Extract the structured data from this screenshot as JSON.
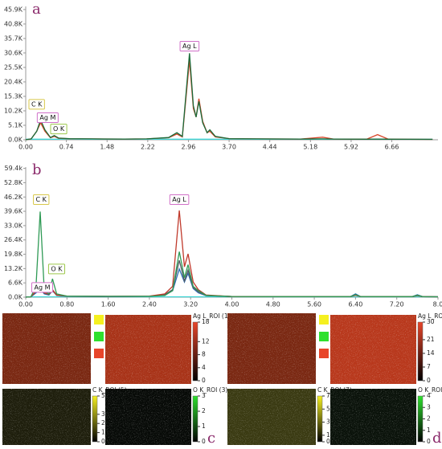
{
  "chart_data": [
    {
      "type": "line",
      "panel_label": "a",
      "xlim": [
        0,
        7.5
      ],
      "ylim": [
        0,
        47000
      ],
      "xticks": [
        {
          "value": 0,
          "label": "0.00"
        },
        0.74,
        1.48,
        2.22,
        2.96,
        {
          "value": 3.7,
          "label": "3.70"
        },
        4.44,
        5.18,
        5.92,
        6.66
      ],
      "yticks": [
        {
          "value": 0,
          "label": "0.0K"
        },
        {
          "value": 5100,
          "label": "5.1K"
        },
        {
          "value": 10200,
          "label": "10.2K"
        },
        {
          "value": 15300,
          "label": "15.3K"
        },
        {
          "value": 20400,
          "label": "20.4K"
        },
        {
          "value": 25500,
          "label": "25.5K"
        },
        {
          "value": 30600,
          "label": "30.6K"
        },
        {
          "value": 35700,
          "label": "35.7K"
        },
        {
          "value": 40800,
          "label": "40.8K"
        },
        {
          "value": 45900,
          "label": "45.9K"
        }
      ],
      "x": [
        0,
        0.1,
        0.2,
        0.27,
        0.35,
        0.45,
        0.52,
        0.6,
        0.8,
        1.2,
        1.8,
        2.2,
        2.6,
        2.75,
        2.85,
        2.98,
        3.05,
        3.1,
        3.15,
        3.22,
        3.3,
        3.35,
        3.45,
        3.7,
        4.2,
        5.0,
        5.4,
        5.6,
        6.2,
        6.4,
        6.6,
        7.4
      ],
      "series": [
        {
          "color": "#3fd6d6",
          "values": [
            200,
            200,
            200,
            200,
            200,
            200,
            200,
            200,
            200,
            200,
            200,
            200,
            200,
            200,
            200,
            200,
            200,
            200,
            200,
            200,
            200,
            200,
            200,
            200,
            200,
            200,
            200,
            200,
            200,
            200,
            200,
            200
          ]
        },
        {
          "color": "#d9472b",
          "values": [
            0,
            300,
            3000,
            6000,
            3000,
            700,
            1200,
            500,
            350,
            300,
            250,
            300,
            700,
            2000,
            1000,
            28000,
            11000,
            8000,
            14500,
            6500,
            2500,
            3000,
            1000,
            400,
            300,
            250,
            900,
            250,
            200,
            1800,
            200,
            150
          ]
        },
        {
          "color": "#1a6b3a",
          "values": [
            0,
            300,
            3000,
            7000,
            3500,
            800,
            1500,
            600,
            400,
            300,
            250,
            300,
            800,
            2500,
            1200,
            30500,
            12000,
            8000,
            13500,
            6000,
            2500,
            3500,
            1200,
            400,
            300,
            250,
            300,
            250,
            200,
            250,
            200,
            150
          ]
        }
      ],
      "annotations": [
        {
          "text": "C K",
          "x": 0.2,
          "y": 12500,
          "color": "#d8c84a"
        },
        {
          "text": "Ag M",
          "x": 0.4,
          "y": 7800,
          "color": "#d070c8"
        },
        {
          "text": "O K",
          "x": 0.6,
          "y": 3800,
          "color": "#9cc84a"
        },
        {
          "text": "Ag L",
          "x": 2.98,
          "y": 33000,
          "color": "#d070c8"
        }
      ]
    },
    {
      "type": "line",
      "panel_label": "b",
      "xlim": [
        0,
        8.0
      ],
      "ylim": [
        0,
        60000
      ],
      "xticks": [
        {
          "value": 0,
          "label": "0.00"
        },
        {
          "value": 0.8,
          "label": "0.80"
        },
        {
          "value": 1.6,
          "label": "1.60"
        },
        {
          "value": 2.4,
          "label": "2.40"
        },
        {
          "value": 3.2,
          "label": "3.20"
        },
        {
          "value": 4,
          "label": "4.00"
        },
        {
          "value": 4.8,
          "label": "4.80"
        },
        {
          "value": 5.6,
          "label": "5.60"
        },
        {
          "value": 6.4,
          "label": "6.40"
        },
        {
          "value": 7.2,
          "label": "7.20"
        },
        {
          "value": 8,
          "label": "8.0"
        }
      ],
      "yticks": [
        {
          "value": 0,
          "label": "0.0K"
        },
        {
          "value": 6600,
          "label": "6.6K"
        },
        {
          "value": 13200,
          "label": "13.2K"
        },
        {
          "value": 19800,
          "label": "19.8K"
        },
        {
          "value": 26400,
          "label": "26.4K"
        },
        {
          "value": 33000,
          "label": "33.0K"
        },
        {
          "value": 39600,
          "label": "39.6K"
        },
        {
          "value": 46200,
          "label": "46.2K"
        },
        {
          "value": 52800,
          "label": "52.8K"
        },
        {
          "value": 59400,
          "label": "59.4k"
        }
      ],
      "x": [
        0,
        0.1,
        0.2,
        0.28,
        0.36,
        0.45,
        0.52,
        0.6,
        0.8,
        1.6,
        2.4,
        2.7,
        2.85,
        2.98,
        3.08,
        3.15,
        3.25,
        3.35,
        3.5,
        4.0,
        4.8,
        5.6,
        6.3,
        6.4,
        6.5,
        7.5,
        7.6,
        7.7,
        8.0
      ],
      "series": [
        {
          "color": "#3fd6d6",
          "values": [
            200,
            200,
            200,
            200,
            200,
            200,
            200,
            200,
            200,
            200,
            200,
            200,
            200,
            200,
            200,
            200,
            200,
            200,
            200,
            200,
            200,
            200,
            200,
            200,
            200,
            200,
            200,
            200,
            200
          ]
        },
        {
          "color": "#2d6fb5",
          "values": [
            0,
            200,
            2000,
            4000,
            1500,
            1000,
            3000,
            900,
            400,
            350,
            400,
            1000,
            3000,
            13000,
            7000,
            11000,
            4000,
            2000,
            700,
            300,
            250,
            250,
            250,
            1500,
            250,
            250,
            1100,
            250,
            200
          ]
        },
        {
          "color": "#555a60",
          "values": [
            0,
            200,
            2500,
            4500,
            1800,
            1200,
            3200,
            900,
            400,
            350,
            400,
            1200,
            3500,
            17000,
            7500,
            12500,
            4500,
            2500,
            800,
            300,
            250,
            250,
            250,
            1000,
            250,
            250,
            800,
            250,
            200
          ]
        },
        {
          "color": "#c0392b",
          "values": [
            0,
            200,
            3000,
            5000,
            2000,
            1500,
            3500,
            1000,
            500,
            400,
            500,
            1500,
            5000,
            40000,
            14000,
            20000,
            7000,
            3500,
            1000,
            300,
            250,
            250,
            250,
            900,
            250,
            250,
            700,
            250,
            200
          ]
        },
        {
          "color": "#2f9a55",
          "values": [
            0,
            200,
            5000,
            39500,
            3000,
            1500,
            8500,
            1500,
            500,
            400,
            400,
            800,
            3000,
            21000,
            9000,
            15000,
            5000,
            3000,
            800,
            300,
            250,
            250,
            250,
            1200,
            250,
            250,
            900,
            250,
            200
          ]
        }
      ],
      "annotations": [
        {
          "text": "C K",
          "x": 0.3,
          "y": 45000,
          "color": "#d8c84a"
        },
        {
          "text": "O K",
          "x": 0.6,
          "y": 13000,
          "color": "#9cc84a"
        },
        {
          "text": "Ag M",
          "x": 0.32,
          "y": 4500,
          "color": "#d070c8"
        },
        {
          "text": "Ag L",
          "x": 2.98,
          "y": 45000,
          "color": "#d070c8"
        }
      ]
    }
  ],
  "maps": [
    {
      "label": "c",
      "legend": [
        {
          "name": "C K",
          "color": "#f5f020"
        },
        {
          "name": "O K",
          "color": "#2ee02e"
        },
        {
          "name": "Ag L",
          "color": "#e8452a"
        }
      ],
      "composite_color": "#7a2812",
      "images": [
        {
          "title": "Ag L_ROI (18)",
          "color": "#e8452a",
          "base": "#a83318",
          "ticks": [
            18,
            12,
            8,
            4,
            0
          ]
        },
        {
          "title": "C K_ROI (5)",
          "color": "#f5f020",
          "base": "#1e1e0c",
          "ticks": [
            5,
            3,
            2,
            1,
            0
          ]
        },
        {
          "title": "O K_ROI (3)",
          "color": "#2ee02e",
          "base": "#070a07",
          "ticks": [
            3,
            2,
            1,
            0
          ]
        }
      ]
    },
    {
      "label": "d",
      "legend": [
        {
          "name": "C K",
          "color": "#f5f020"
        },
        {
          "name": "O K",
          "color": "#2ee02e"
        },
        {
          "name": "Ag L",
          "color": "#e8452a"
        }
      ],
      "composite_color": "#7a2812",
      "images": [
        {
          "title": "Ag L_ROI (30)",
          "color": "#e8452a",
          "base": "#b8381c",
          "ticks": [
            30,
            21,
            14,
            7,
            0
          ]
        },
        {
          "title": "C K_ROI (7)",
          "color": "#f5f020",
          "base": "#3a3a12",
          "ticks": [
            7,
            5,
            3,
            1,
            0
          ]
        },
        {
          "title": "O K_ROI (4)",
          "color": "#2ee02e",
          "base": "#0a120a",
          "ticks": [
            4,
            3,
            2,
            1,
            0
          ]
        }
      ]
    }
  ]
}
